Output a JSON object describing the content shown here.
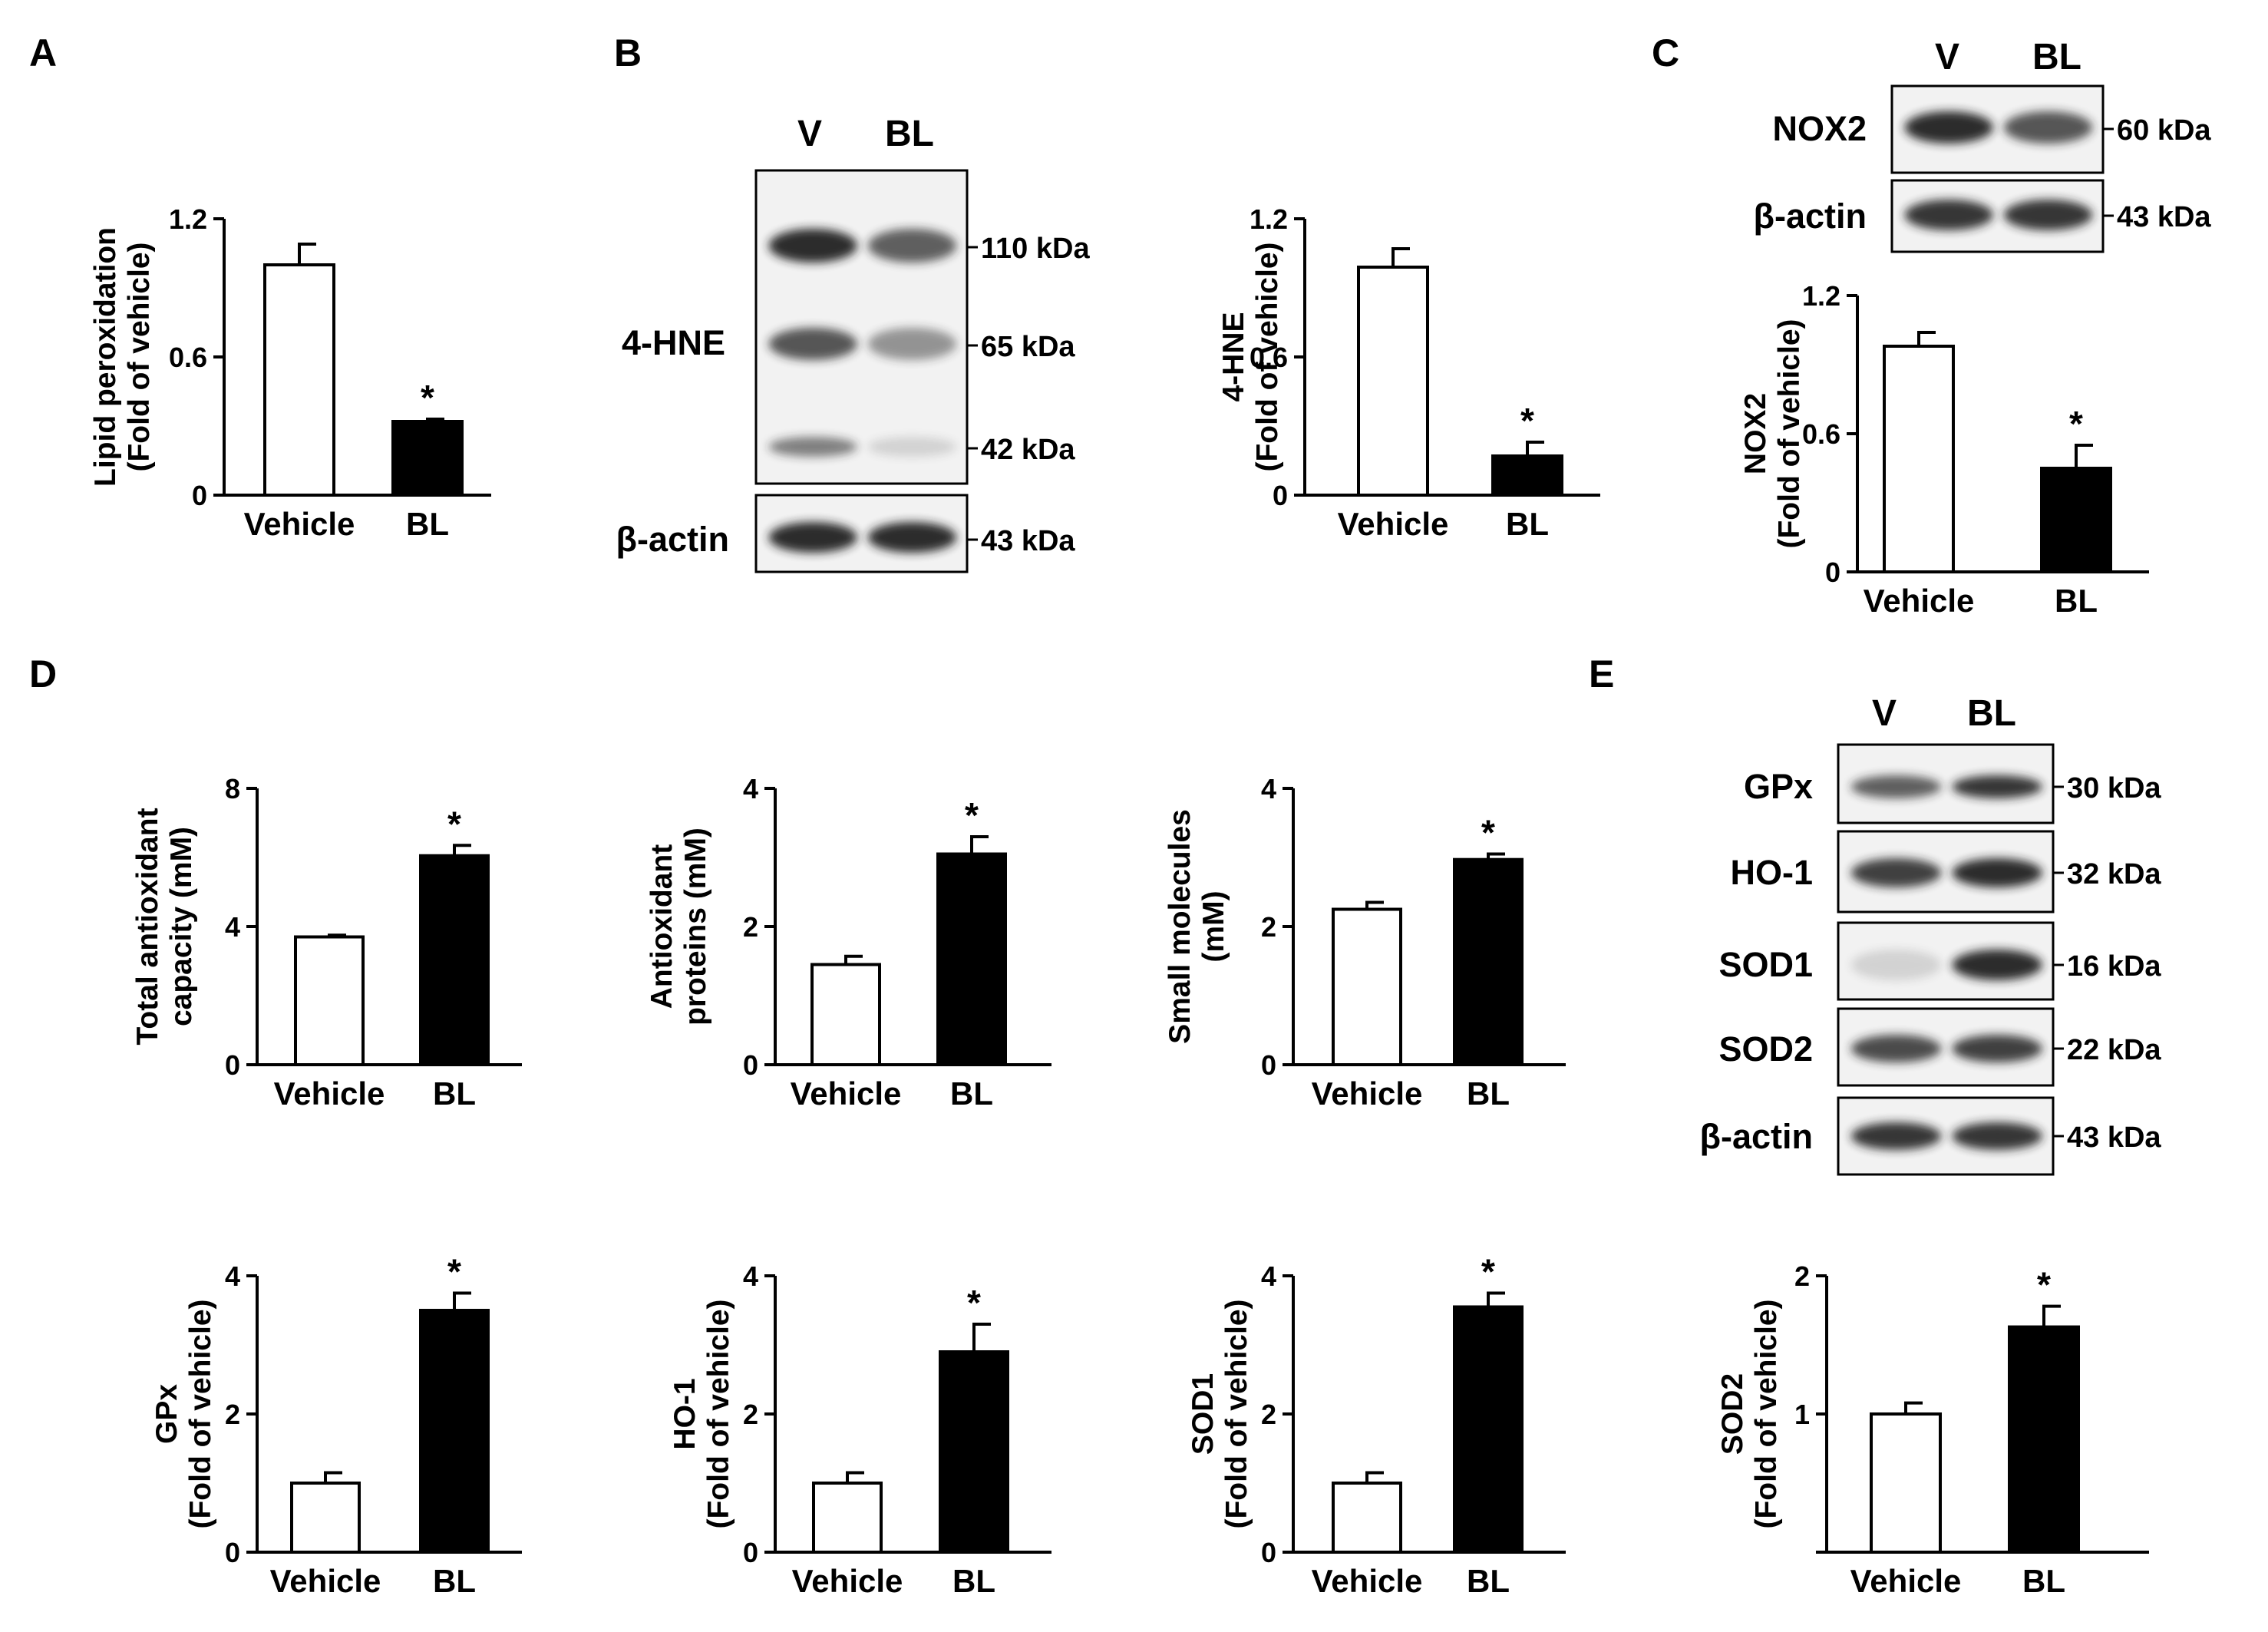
{
  "panel_labels": [
    "A",
    "B",
    "C",
    "D",
    "E"
  ],
  "colors": {
    "vehicle_fill": "#ffffff",
    "bl_fill": "#000000",
    "axis": "#000000",
    "blot_bg": "#f2f2f2",
    "band": "#222222"
  },
  "blots": [
    {
      "id": "B",
      "lanes": [
        "V",
        "BL"
      ],
      "label_style": "big",
      "rows": [
        {
          "protein": "4-HNE",
          "markers": [
            "110 kDa",
            "65 kDa",
            "42 kDa"
          ],
          "v_intensity": [
            0.95,
            0.75,
            0.55
          ],
          "bl_intensity": [
            0.7,
            0.45,
            0.15
          ]
        },
        {
          "protein": "β-actin",
          "markers": [
            "43 kDa"
          ],
          "v_intensity": [
            0.95
          ],
          "bl_intensity": [
            0.95
          ]
        }
      ]
    },
    {
      "id": "C",
      "lanes": [
        "V",
        "BL"
      ],
      "rows": [
        {
          "protein": "NOX2",
          "markers": [
            "60 kDa"
          ],
          "v_intensity": [
            0.95
          ],
          "bl_intensity": [
            0.75
          ]
        },
        {
          "protein": "β-actin",
          "markers": [
            "43 kDa"
          ],
          "v_intensity": [
            0.9
          ],
          "bl_intensity": [
            0.9
          ]
        }
      ]
    },
    {
      "id": "E",
      "lanes": [
        "V",
        "BL"
      ],
      "rows": [
        {
          "protein": "GPx",
          "markers": [
            "30 kDa"
          ],
          "v_intensity": [
            0.7
          ],
          "bl_intensity": [
            0.9
          ]
        },
        {
          "protein": "HO-1",
          "markers": [
            "32 kDa"
          ],
          "v_intensity": [
            0.85
          ],
          "bl_intensity": [
            0.95
          ]
        },
        {
          "protein": "SOD1",
          "markers": [
            "16 kDa"
          ],
          "v_intensity": [
            0.15
          ],
          "bl_intensity": [
            0.95
          ]
        },
        {
          "protein": "SOD2",
          "markers": [
            "22 kDa"
          ],
          "v_intensity": [
            0.8
          ],
          "bl_intensity": [
            0.85
          ]
        },
        {
          "protein": "β-actin",
          "markers": [
            "43 kDa"
          ],
          "v_intensity": [
            0.9
          ],
          "bl_intensity": [
            0.9
          ]
        }
      ]
    }
  ],
  "chart_data": [
    {
      "id": "A",
      "type": "bar",
      "categories": [
        "Vehicle",
        "BL"
      ],
      "values": [
        1.0,
        0.32
      ],
      "errors": [
        0.09,
        0.01
      ],
      "significant": [
        false,
        true
      ],
      "ylabel_lines": [
        "Lipid peroxidation",
        "(Fold of vehicle)"
      ],
      "ylim": [
        0,
        1.2
      ],
      "yticks": [
        "0",
        "0.6",
        "1.2"
      ]
    },
    {
      "id": "B",
      "type": "bar",
      "categories": [
        "Vehicle",
        "BL"
      ],
      "values": [
        0.99,
        0.17
      ],
      "errors": [
        0.08,
        0.06
      ],
      "significant": [
        false,
        true
      ],
      "ylabel_lines": [
        "4-HNE",
        "(Fold of vehicle)"
      ],
      "ylim": [
        0,
        1.2
      ],
      "yticks": [
        "0",
        "0.6",
        "1.2"
      ]
    },
    {
      "id": "C",
      "type": "bar",
      "categories": [
        "Vehicle",
        "BL"
      ],
      "values": [
        0.98,
        0.45
      ],
      "errors": [
        0.06,
        0.1
      ],
      "significant": [
        false,
        true
      ],
      "ylabel_lines": [
        "NOX2",
        "(Fold of vehicle)"
      ],
      "ylim": [
        0,
        1.2
      ],
      "yticks": [
        "0",
        "0.6",
        "1.2"
      ]
    },
    {
      "id": "D1",
      "type": "bar",
      "categories": [
        "Vehicle",
        "BL"
      ],
      "values": [
        3.7,
        6.05
      ],
      "errors": [
        0.05,
        0.3
      ],
      "significant": [
        false,
        true
      ],
      "ylabel_lines": [
        "Total antioxidant",
        "capacity (mM)"
      ],
      "ylim": [
        0,
        8
      ],
      "yticks": [
        "0",
        "4",
        "8"
      ]
    },
    {
      "id": "D2",
      "type": "bar",
      "categories": [
        "Vehicle",
        "BL"
      ],
      "values": [
        1.45,
        3.05
      ],
      "errors": [
        0.12,
        0.25
      ],
      "significant": [
        false,
        true
      ],
      "ylabel_lines": [
        "Antioxidant",
        "proteins (mM)"
      ],
      "ylim": [
        0,
        4
      ],
      "yticks": [
        "0",
        "2",
        "4"
      ]
    },
    {
      "id": "D3",
      "type": "bar",
      "categories": [
        "Vehicle",
        "BL"
      ],
      "values": [
        2.25,
        2.97
      ],
      "errors": [
        0.1,
        0.08
      ],
      "significant": [
        false,
        true
      ],
      "ylabel_lines": [
        "Small molecules",
        "(mM)"
      ],
      "ylim": [
        0,
        4
      ],
      "yticks": [
        "0",
        "2",
        "4"
      ]
    },
    {
      "id": "E1",
      "type": "bar",
      "categories": [
        "Vehicle",
        "BL"
      ],
      "values": [
        1.0,
        3.5
      ],
      "errors": [
        0.15,
        0.25
      ],
      "significant": [
        false,
        true
      ],
      "ylabel_lines": [
        "GPx",
        "(Fold of vehicle)"
      ],
      "ylim": [
        0,
        4
      ],
      "yticks": [
        "0",
        "2",
        "4"
      ]
    },
    {
      "id": "E2",
      "type": "bar",
      "categories": [
        "Vehicle",
        "BL"
      ],
      "values": [
        1.0,
        2.9
      ],
      "errors": [
        0.15,
        0.4
      ],
      "significant": [
        false,
        true
      ],
      "ylabel_lines": [
        "HO-1",
        "(Fold of vehicle)"
      ],
      "ylim": [
        0,
        4
      ],
      "yticks": [
        "0",
        "2",
        "4"
      ]
    },
    {
      "id": "E3",
      "type": "bar",
      "categories": [
        "Vehicle",
        "BL"
      ],
      "values": [
        1.0,
        3.55
      ],
      "errors": [
        0.15,
        0.2
      ],
      "significant": [
        false,
        true
      ],
      "ylabel_lines": [
        "SOD1",
        "(Fold of vehicle)"
      ],
      "ylim": [
        0,
        4
      ],
      "yticks": [
        "0",
        "2",
        "4"
      ]
    },
    {
      "id": "E4",
      "type": "bar",
      "categories": [
        "Vehicle",
        "BL"
      ],
      "values": [
        1.0,
        1.63
      ],
      "errors": [
        0.08,
        0.15
      ],
      "significant": [
        false,
        true
      ],
      "ylabel_lines": [
        "SOD2",
        "(Fold of vehicle)"
      ],
      "ylim": [
        0,
        2
      ],
      "yticks": [
        "",
        "1",
        "2"
      ]
    }
  ]
}
